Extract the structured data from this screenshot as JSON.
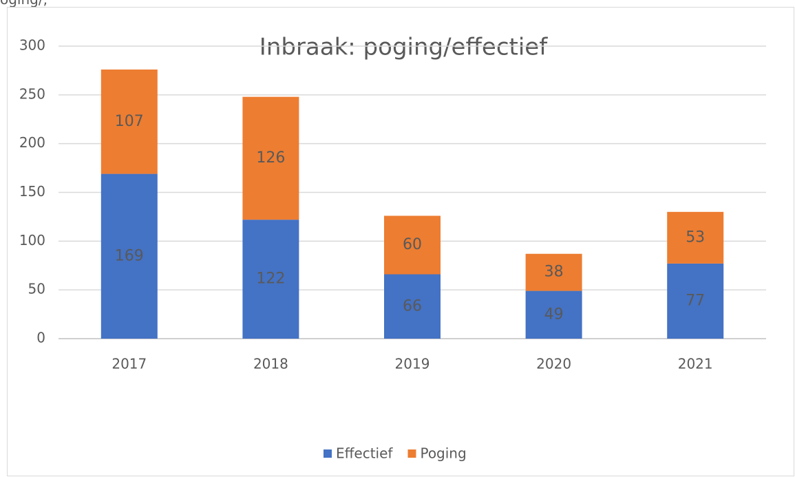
{
  "caption": "oging/,",
  "chart_data": {
    "type": "stacked_bar",
    "title": "Inbraak: poging/effectief",
    "categories": [
      "2017",
      "2018",
      "2019",
      "2020",
      "2021"
    ],
    "series": [
      {
        "name": "Effectief",
        "color": "#4472c4",
        "values": [
          169,
          122,
          66,
          49,
          77
        ]
      },
      {
        "name": "Poging",
        "color": "#ed7d31",
        "values": [
          107,
          126,
          60,
          38,
          53
        ]
      }
    ],
    "ylim": [
      0,
      300
    ],
    "yticks": [
      0,
      50,
      100,
      150,
      200,
      250,
      300
    ],
    "grid": true,
    "legend": "bottom"
  }
}
